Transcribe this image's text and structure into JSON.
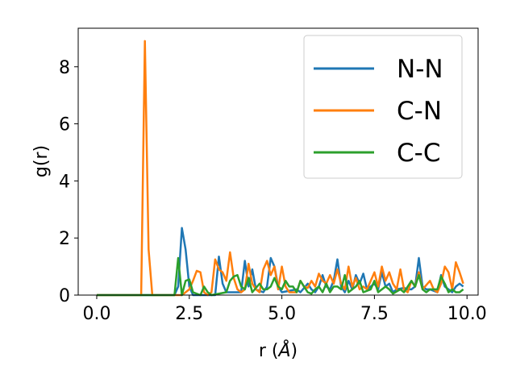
{
  "chart_data": {
    "type": "line",
    "xlabel_main": "r (",
    "xlabel_unit": "Å",
    "xlabel_close": ")",
    "ylabel": "g(r)",
    "xlim": [
      -0.5,
      10.3
    ],
    "ylim": [
      0,
      9.35
    ],
    "xticks": [
      0.0,
      2.5,
      5.0,
      7.5,
      10.0
    ],
    "xtick_labels": [
      "0.0",
      "2.5",
      "5.0",
      "7.5",
      "10.0"
    ],
    "yticks": [
      0,
      2,
      4,
      6,
      8
    ],
    "ytick_labels": [
      "0",
      "2",
      "4",
      "6",
      "8"
    ],
    "grid": false,
    "legend_position": "top-right",
    "series": [
      {
        "name": "N-N",
        "color": "#1f77b4",
        "points": [
          [
            0.0,
            0
          ],
          [
            2.1,
            0
          ],
          [
            2.2,
            0.3
          ],
          [
            2.3,
            2.35
          ],
          [
            2.4,
            1.6
          ],
          [
            2.5,
            0.3
          ],
          [
            2.6,
            0
          ],
          [
            3.2,
            0
          ],
          [
            3.3,
            1.35
          ],
          [
            3.4,
            0.4
          ],
          [
            3.5,
            0.1
          ],
          [
            3.9,
            0.1
          ],
          [
            4.0,
            1.2
          ],
          [
            4.1,
            0.3
          ],
          [
            4.2,
            0.9
          ],
          [
            4.3,
            0.2
          ],
          [
            4.5,
            0.1
          ],
          [
            4.6,
            0.3
          ],
          [
            4.7,
            1.3
          ],
          [
            4.8,
            1.0
          ],
          [
            4.9,
            0.3
          ],
          [
            5.0,
            0.1
          ],
          [
            5.4,
            0.2
          ],
          [
            5.5,
            0.1
          ],
          [
            5.7,
            0.4
          ],
          [
            5.8,
            0.2
          ],
          [
            5.9,
            0.1
          ],
          [
            6.0,
            0.3
          ],
          [
            6.1,
            0.7
          ],
          [
            6.2,
            0.3
          ],
          [
            6.3,
            0.2
          ],
          [
            6.4,
            0.5
          ],
          [
            6.5,
            1.25
          ],
          [
            6.6,
            0.3
          ],
          [
            6.7,
            0.1
          ],
          [
            6.8,
            0.5
          ],
          [
            6.9,
            0.2
          ],
          [
            7.0,
            0.7
          ],
          [
            7.1,
            0.4
          ],
          [
            7.2,
            0.75
          ],
          [
            7.3,
            0.2
          ],
          [
            7.5,
            0.4
          ],
          [
            7.6,
            0.2
          ],
          [
            7.7,
            0.8
          ],
          [
            7.8,
            0.3
          ],
          [
            7.9,
            0.4
          ],
          [
            8.0,
            0.1
          ],
          [
            8.1,
            0.2
          ],
          [
            8.3,
            0.25
          ],
          [
            8.4,
            0.2
          ],
          [
            8.5,
            0.2
          ],
          [
            8.6,
            0.3
          ],
          [
            8.7,
            1.3
          ],
          [
            8.8,
            0.3
          ],
          [
            8.9,
            0.2
          ],
          [
            9.0,
            0.2
          ],
          [
            9.2,
            0.1
          ],
          [
            9.3,
            0.7
          ],
          [
            9.4,
            0.3
          ],
          [
            9.5,
            0.2
          ],
          [
            9.6,
            0.1
          ],
          [
            9.7,
            0.3
          ],
          [
            9.8,
            0.4
          ],
          [
            9.9,
            0.3
          ]
        ]
      },
      {
        "name": "C-N",
        "color": "#ff7f0e",
        "points": [
          [
            0.0,
            0
          ],
          [
            1.2,
            0
          ],
          [
            1.3,
            8.9
          ],
          [
            1.4,
            1.6
          ],
          [
            1.5,
            0
          ],
          [
            2.3,
            0
          ],
          [
            2.4,
            0.1
          ],
          [
            2.5,
            0.2
          ],
          [
            2.6,
            0.5
          ],
          [
            2.7,
            0.85
          ],
          [
            2.8,
            0.8
          ],
          [
            2.9,
            0.1
          ],
          [
            3.0,
            0
          ],
          [
            3.1,
            0.1
          ],
          [
            3.2,
            1.25
          ],
          [
            3.3,
            0.9
          ],
          [
            3.4,
            0.8
          ],
          [
            3.5,
            0.5
          ],
          [
            3.6,
            1.5
          ],
          [
            3.7,
            0.6
          ],
          [
            3.8,
            0.2
          ],
          [
            3.9,
            0.1
          ],
          [
            4.0,
            0.2
          ],
          [
            4.1,
            1.1
          ],
          [
            4.2,
            0.4
          ],
          [
            4.3,
            0.2
          ],
          [
            4.4,
            0.1
          ],
          [
            4.5,
            0.9
          ],
          [
            4.6,
            1.2
          ],
          [
            4.7,
            0.7
          ],
          [
            4.8,
            1.0
          ],
          [
            4.9,
            0.2
          ],
          [
            5.0,
            1.0
          ],
          [
            5.1,
            0.3
          ],
          [
            5.2,
            0.1
          ],
          [
            5.4,
            0.1
          ],
          [
            5.5,
            0.5
          ],
          [
            5.6,
            0.3
          ],
          [
            5.7,
            0.25
          ],
          [
            5.8,
            0.5
          ],
          [
            5.9,
            0.3
          ],
          [
            6.0,
            0.75
          ],
          [
            6.1,
            0.5
          ],
          [
            6.2,
            0.4
          ],
          [
            6.3,
            0.7
          ],
          [
            6.4,
            0.4
          ],
          [
            6.5,
            0.9
          ],
          [
            6.6,
            0.4
          ],
          [
            6.7,
            0.2
          ],
          [
            6.8,
            1.0
          ],
          [
            6.9,
            0.3
          ],
          [
            7.0,
            0.6
          ],
          [
            7.1,
            0.2
          ],
          [
            7.2,
            0.3
          ],
          [
            7.3,
            0.2
          ],
          [
            7.5,
            0.8
          ],
          [
            7.6,
            0.3
          ],
          [
            7.7,
            1.0
          ],
          [
            7.8,
            0.5
          ],
          [
            7.9,
            0.8
          ],
          [
            8.0,
            0.4
          ],
          [
            8.1,
            0.2
          ],
          [
            8.2,
            0.9
          ],
          [
            8.3,
            0.2
          ],
          [
            8.4,
            0.1
          ],
          [
            8.5,
            0.5
          ],
          [
            8.6,
            0.3
          ],
          [
            8.7,
            0.8
          ],
          [
            8.8,
            0.2
          ],
          [
            9.0,
            0.5
          ],
          [
            9.1,
            0.2
          ],
          [
            9.2,
            0.1
          ],
          [
            9.3,
            0.4
          ],
          [
            9.4,
            1.0
          ],
          [
            9.5,
            0.8
          ],
          [
            9.6,
            0.2
          ],
          [
            9.7,
            1.15
          ],
          [
            9.8,
            0.8
          ],
          [
            9.9,
            0.4
          ]
        ]
      },
      {
        "name": "C-C",
        "color": "#2ca02c",
        "points": [
          [
            0.0,
            0
          ],
          [
            2.1,
            0
          ],
          [
            2.2,
            1.3
          ],
          [
            2.3,
            0
          ],
          [
            2.4,
            0.5
          ],
          [
            2.5,
            0.55
          ],
          [
            2.6,
            0.1
          ],
          [
            2.8,
            0
          ],
          [
            2.9,
            0.3
          ],
          [
            3.0,
            0.1
          ],
          [
            3.1,
            0
          ],
          [
            3.5,
            0.1
          ],
          [
            3.6,
            0.5
          ],
          [
            3.7,
            0.65
          ],
          [
            3.8,
            0.7
          ],
          [
            3.9,
            0.3
          ],
          [
            4.0,
            0.2
          ],
          [
            4.1,
            0.6
          ],
          [
            4.2,
            0.1
          ],
          [
            4.4,
            0.4
          ],
          [
            4.5,
            0.2
          ],
          [
            4.6,
            0.2
          ],
          [
            4.7,
            0.3
          ],
          [
            4.8,
            0.6
          ],
          [
            4.9,
            0.3
          ],
          [
            5.0,
            0.2
          ],
          [
            5.1,
            0.5
          ],
          [
            5.2,
            0.3
          ],
          [
            5.3,
            0.3
          ],
          [
            5.4,
            0.1
          ],
          [
            5.5,
            0.5
          ],
          [
            5.6,
            0.3
          ],
          [
            5.7,
            0.1
          ],
          [
            5.8,
            0.05
          ],
          [
            5.9,
            0.2
          ],
          [
            6.0,
            0.3
          ],
          [
            6.1,
            0.1
          ],
          [
            6.2,
            0.4
          ],
          [
            6.3,
            0.1
          ],
          [
            6.4,
            0.3
          ],
          [
            6.5,
            0.3
          ],
          [
            6.6,
            0.2
          ],
          [
            6.7,
            0.7
          ],
          [
            6.8,
            0.1
          ],
          [
            6.9,
            0.2
          ],
          [
            7.0,
            0.3
          ],
          [
            7.1,
            0.5
          ],
          [
            7.2,
            0.1
          ],
          [
            7.4,
            0.2
          ],
          [
            7.5,
            0.5
          ],
          [
            7.6,
            0.1
          ],
          [
            7.8,
            0.3
          ],
          [
            7.9,
            0.2
          ],
          [
            8.0,
            0.05
          ],
          [
            8.2,
            0.2
          ],
          [
            8.3,
            0.1
          ],
          [
            8.5,
            0.5
          ],
          [
            8.6,
            0.3
          ],
          [
            8.7,
            0.7
          ],
          [
            8.8,
            0.2
          ],
          [
            8.9,
            0.1
          ],
          [
            9.0,
            0.2
          ],
          [
            9.2,
            0.2
          ],
          [
            9.3,
            0.65
          ],
          [
            9.4,
            0.4
          ],
          [
            9.5,
            0.1
          ],
          [
            9.6,
            0.2
          ],
          [
            9.7,
            0.1
          ],
          [
            9.8,
            0.1
          ],
          [
            9.9,
            0.2
          ]
        ]
      }
    ]
  }
}
